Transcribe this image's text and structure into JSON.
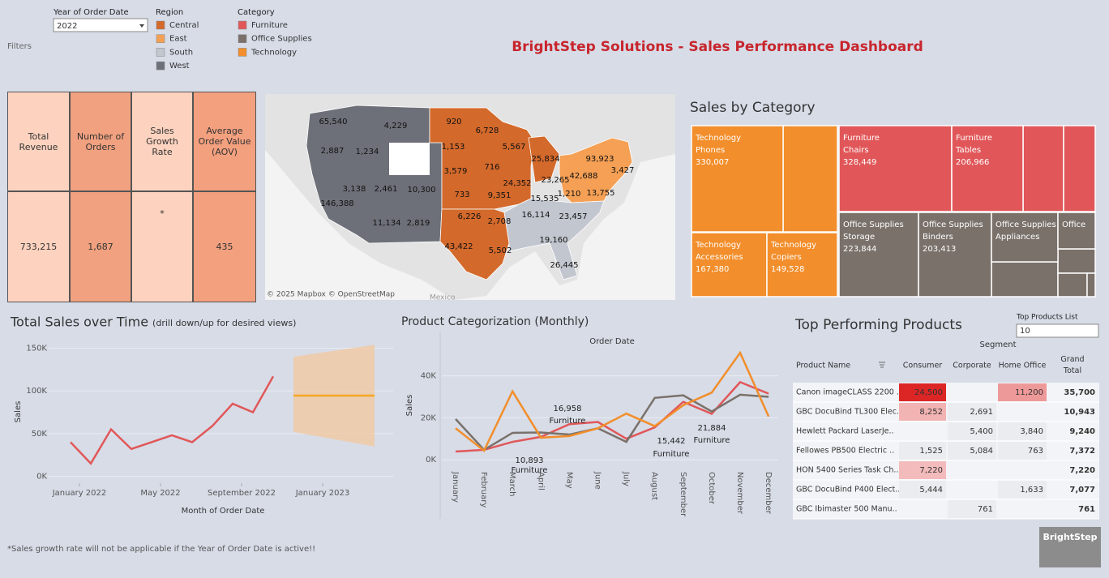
{
  "header": {
    "title": "BrightStep Solutions - Sales Performance Dashboard",
    "filters_label": "Filters",
    "footnote": "*Sales growth rate will not be applicable if the Year of Order Date is active!!",
    "logo": "BrightStep"
  },
  "filters": {
    "year": {
      "label": "Year of Order Date",
      "value": "2022"
    },
    "region": {
      "label": "Region",
      "items": [
        {
          "name": "Central",
          "color": "#d3692b"
        },
        {
          "name": "East",
          "color": "#f5a055"
        },
        {
          "name": "South",
          "color": "#c2c6cf"
        },
        {
          "name": "West",
          "color": "#6e7079"
        }
      ]
    },
    "category": {
      "label": "Category",
      "items": [
        {
          "name": "Furniture",
          "color": "#e15759"
        },
        {
          "name": "Office Supplies",
          "color": "#7a716a"
        },
        {
          "name": "Technology",
          "color": "#f28e2b"
        }
      ]
    }
  },
  "kpis": {
    "headers": [
      "Total Revenue",
      "Number of Orders",
      "Sales Growth Rate",
      "Average Order Value (AOV)"
    ],
    "values": [
      "733,215",
      "1,687",
      "*",
      "435"
    ]
  },
  "map": {
    "labels": [
      "65,540",
      "4,229",
      "2,887",
      "1,234",
      "3,138",
      "2,461",
      "10,300",
      "146,388",
      "11,134",
      "2,819",
      "920",
      "6,728",
      "1,153",
      "5,567",
      "3,579",
      "716",
      "25,834",
      "733",
      "24,352",
      "9,351",
      "93,923",
      "23,265",
      "42,688",
      "3,427",
      "1,210",
      "13,755",
      "15,535",
      "16,114",
      "23,457",
      "6,226",
      "2,708",
      "19,160",
      "43,422",
      "5,502",
      "26,445"
    ],
    "credit": "© 2025 Mapbox © OpenStreetMap",
    "country": "Mexico"
  },
  "treemap": {
    "title": "Sales by Category",
    "tiles": [
      {
        "category": "Technology",
        "subcategory": "Phones",
        "value": 330007,
        "value_label": "330,007"
      },
      {
        "category": "Furniture",
        "subcategory": "Chairs",
        "value": 328449,
        "value_label": "328,449"
      },
      {
        "category": "Furniture",
        "subcategory": "Tables",
        "value": 206966,
        "value_label": "206,966"
      },
      {
        "category": "Office Supplies",
        "subcategory": "Storage",
        "value": 223844,
        "value_label": "223,844"
      },
      {
        "category": "Office Supplies",
        "subcategory": "Binders",
        "value": 203413,
        "value_label": "203,413"
      },
      {
        "category": "Technology",
        "subcategory": "Accessories",
        "value": 167380,
        "value_label": "167,380"
      },
      {
        "category": "Technology",
        "subcategory": "Copiers",
        "value": 149528,
        "value_label": "149,528"
      },
      {
        "category": "Office Supplies",
        "subcategory": "Appliances"
      },
      {
        "category": "Office"
      }
    ]
  },
  "sales_over_time": {
    "type": "line",
    "title": "Total Sales over Time",
    "subtitle": "(drill down/up for desired views)",
    "x": [
      "2022-01",
      "2022-02",
      "2022-03",
      "2022-04",
      "2022-05",
      "2022-06",
      "2022-07",
      "2022-08",
      "2022-09",
      "2022-10",
      "2022-11"
    ],
    "values": [
      40000,
      15000,
      55000,
      32000,
      40000,
      48000,
      40000,
      59000,
      85000,
      75000,
      117000
    ],
    "color": "#e15759",
    "forecast": {
      "x": [
        "2022-12",
        "2023-04"
      ],
      "values": [
        94500,
        94500
      ],
      "lower": [
        52000,
        35000
      ],
      "upper": [
        140000,
        154000
      ],
      "color": "#f5a623",
      "band_color": "#f3c9a2"
    },
    "ylim": [
      -8000,
      160000
    ],
    "yticks": [
      {
        "value": 0,
        "label": "0K"
      },
      {
        "value": 50000,
        "label": "50K"
      },
      {
        "value": 100000,
        "label": "100K"
      },
      {
        "value": 150000,
        "label": "150K"
      }
    ],
    "xticks": [
      {
        "value": "2022-01",
        "label": "January 2022"
      },
      {
        "value": "2022-05",
        "label": "May 2022"
      },
      {
        "value": "2022-09",
        "label": "September 2022"
      },
      {
        "value": "2023-01",
        "label": "January 2023"
      }
    ],
    "xlabel": "Month of Order Date",
    "ylabel": "Sales",
    "grid": true
  },
  "product_categorization": {
    "type": "line",
    "title": "Product Categorization (Monthly)",
    "header": "Order Date",
    "ylabel": "Sales",
    "categories": [
      "January",
      "February",
      "March",
      "April",
      "May",
      "June",
      "July",
      "August",
      "September",
      "October",
      "November",
      "December"
    ],
    "series": [
      {
        "name": "Furniture",
        "color": "#e15759",
        "values": [
          3900,
          4700,
          8500,
          10893,
          16958,
          18000,
          10000,
          15442,
          27600,
          21884,
          37000,
          31500
        ]
      },
      {
        "name": "Office Supplies",
        "color": "#7a716a",
        "values": [
          19400,
          4700,
          12800,
          13000,
          12000,
          15000,
          8500,
          29500,
          30700,
          23000,
          31000,
          30000
        ]
      },
      {
        "name": "Technology",
        "color": "#f28e2b",
        "values": [
          15000,
          4300,
          32600,
          10500,
          11300,
          15000,
          22000,
          16000,
          26000,
          32000,
          51000,
          20600
        ]
      }
    ],
    "annotations": [
      {
        "label": "16,958",
        "name": "Furniture"
      },
      {
        "label": "10,893",
        "name": "Furniture"
      },
      {
        "label": "15,442",
        "name": "Furniture"
      },
      {
        "label": "21,884",
        "name": "Furniture"
      }
    ],
    "ylim": [
      -5000,
      53000
    ],
    "yticks": [
      {
        "value": 0,
        "label": "0K"
      },
      {
        "value": 20000,
        "label": "20K"
      },
      {
        "value": 40000,
        "label": "40K"
      }
    ],
    "grid": true
  },
  "top_products": {
    "title": "Top Performing Products",
    "control_label": "Top Products List",
    "control_value": "10",
    "segment_label": "Segment",
    "columns": [
      "Product Name",
      "Consumer",
      "Corporate",
      "Home Office",
      "Grand Total"
    ],
    "rows": [
      {
        "product": "Canon imageCLASS 2200 ..",
        "values": [
          24500,
          null,
          11200
        ],
        "value_labels": [
          "24,500",
          null,
          "11,200"
        ],
        "total": "35,700"
      },
      {
        "product": "GBC DocuBind TL300 Elec..",
        "values": [
          8252,
          2691,
          null
        ],
        "value_labels": [
          "8,252",
          "2,691",
          null
        ],
        "total": "10,943"
      },
      {
        "product": "Hewlett Packard LaserJe..",
        "values": [
          null,
          5400,
          3840
        ],
        "value_labels": [
          null,
          "5,400",
          "3,840"
        ],
        "total": "9,240"
      },
      {
        "product": "Fellowes PB500 Electric ..",
        "values": [
          1525,
          5084,
          763
        ],
        "value_labels": [
          "1,525",
          "5,084",
          "763"
        ],
        "total": "7,372"
      },
      {
        "product": "HON 5400 Series Task Ch..",
        "values": [
          7220,
          null,
          null
        ],
        "value_labels": [
          "7,220",
          null,
          null
        ],
        "total": "7,220"
      },
      {
        "product": "GBC DocuBind P400 Elect..",
        "values": [
          5444,
          null,
          1633
        ],
        "value_labels": [
          "5,444",
          null,
          "1,633"
        ],
        "total": "7,077"
      },
      {
        "product": "GBC Ibimaster 500 Manu..",
        "values": [
          null,
          761,
          null
        ],
        "value_labels": [
          null,
          "761",
          null
        ],
        "total": "761"
      }
    ]
  }
}
